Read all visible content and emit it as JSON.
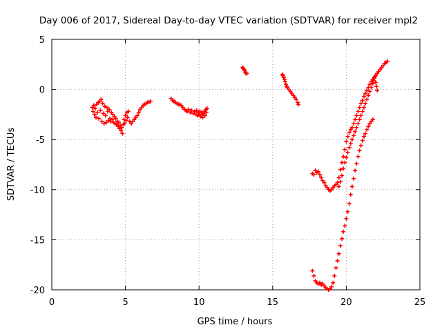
{
  "chart_data": {
    "type": "scatter",
    "title": "Day 006 of 2017, Sidereal Day-to-day VTEC variation (SDTVAR) for receiver mpl2",
    "xlabel": "GPS time / hours",
    "ylabel": "SDTVAR / TECUs",
    "xlim": [
      0,
      25
    ],
    "ylim": [
      -20,
      5
    ],
    "xticks": [
      0,
      5,
      10,
      15,
      20,
      25
    ],
    "yticks": [
      -20,
      -15,
      -10,
      -5,
      0,
      5
    ],
    "grid": true,
    "marker": "plus",
    "color": "#ff0000",
    "series": [
      {
        "points": [
          [
            2.75,
            -1.8
          ],
          [
            2.8,
            -2.2
          ],
          [
            2.85,
            -1.6
          ],
          [
            2.9,
            -2.5
          ],
          [
            2.95,
            -1.9
          ],
          [
            3.0,
            -2.8
          ],
          [
            3.05,
            -1.5
          ],
          [
            3.1,
            -2.3
          ],
          [
            3.15,
            -1.3
          ],
          [
            3.2,
            -2.9
          ],
          [
            3.25,
            -1.2
          ],
          [
            3.3,
            -2.1
          ],
          [
            3.35,
            -1.0
          ],
          [
            3.4,
            -3.2
          ],
          [
            3.45,
            -1.4
          ],
          [
            3.5,
            -2.4
          ],
          [
            3.55,
            -3.4
          ],
          [
            3.6,
            -1.7
          ],
          [
            3.65,
            -2.6
          ],
          [
            3.7,
            -3.3
          ],
          [
            3.75,
            -1.8
          ],
          [
            3.8,
            -2.2
          ],
          [
            3.85,
            -3.1
          ],
          [
            3.9,
            -2.0
          ],
          [
            3.95,
            -2.9
          ],
          [
            4.0,
            -3.2
          ],
          [
            4.05,
            -2.3
          ],
          [
            4.1,
            -3.0
          ],
          [
            4.15,
            -2.5
          ],
          [
            4.2,
            -3.3
          ],
          [
            4.25,
            -2.7
          ],
          [
            4.3,
            -3.4
          ],
          [
            4.35,
            -2.9
          ],
          [
            4.4,
            -3.5
          ],
          [
            4.45,
            -3.2
          ],
          [
            4.5,
            -3.7
          ],
          [
            4.55,
            -3.3
          ],
          [
            4.6,
            -3.9
          ],
          [
            4.65,
            -3.6
          ],
          [
            4.7,
            -4.1
          ],
          [
            4.75,
            -3.8
          ],
          [
            4.8,
            -4.4
          ],
          [
            4.85,
            -3.5
          ],
          [
            4.9,
            -3.0
          ],
          [
            4.95,
            -3.4
          ],
          [
            5.0,
            -2.6
          ],
          [
            5.05,
            -3.1
          ],
          [
            5.1,
            -2.3
          ],
          [
            5.15,
            -2.8
          ],
          [
            5.2,
            -2.2
          ],
          [
            5.3,
            -3.2
          ],
          [
            5.4,
            -3.4
          ],
          [
            5.5,
            -3.2
          ],
          [
            5.6,
            -3.0
          ],
          [
            5.7,
            -2.8
          ],
          [
            5.8,
            -2.6
          ],
          [
            5.9,
            -2.3
          ],
          [
            6.0,
            -2.0
          ],
          [
            6.1,
            -1.8
          ],
          [
            6.2,
            -1.6
          ],
          [
            6.3,
            -1.5
          ],
          [
            6.4,
            -1.4
          ],
          [
            6.5,
            -1.3
          ],
          [
            6.6,
            -1.25
          ],
          [
            6.7,
            -1.2
          ]
        ]
      },
      {
        "points": [
          [
            8.1,
            -0.9
          ],
          [
            8.2,
            -1.1
          ],
          [
            8.3,
            -1.2
          ],
          [
            8.4,
            -1.3
          ],
          [
            8.5,
            -1.4
          ],
          [
            8.6,
            -1.5
          ],
          [
            8.7,
            -1.5
          ],
          [
            8.8,
            -1.6
          ],
          [
            8.9,
            -1.8
          ],
          [
            9.0,
            -2.0
          ],
          [
            9.1,
            -2.1
          ],
          [
            9.2,
            -2.2
          ],
          [
            9.3,
            -2.0
          ],
          [
            9.4,
            -2.3
          ],
          [
            9.5,
            -2.1
          ],
          [
            9.6,
            -2.4
          ],
          [
            9.7,
            -2.2
          ],
          [
            9.8,
            -2.5
          ],
          [
            9.85,
            -2.1
          ],
          [
            9.9,
            -2.6
          ],
          [
            9.95,
            -2.3
          ],
          [
            10.0,
            -2.5
          ],
          [
            10.05,
            -2.2
          ],
          [
            10.1,
            -2.7
          ],
          [
            10.15,
            -2.3
          ],
          [
            10.2,
            -2.5
          ],
          [
            10.25,
            -2.8
          ],
          [
            10.3,
            -2.4
          ],
          [
            10.35,
            -2.2
          ],
          [
            10.4,
            -2.6
          ],
          [
            10.45,
            -2.0
          ],
          [
            10.5,
            -2.3
          ],
          [
            10.55,
            -1.9
          ]
        ]
      },
      {
        "points": [
          [
            12.95,
            2.2
          ],
          [
            13.0,
            2.1
          ],
          [
            13.05,
            2.0
          ],
          [
            13.1,
            1.9
          ],
          [
            13.15,
            1.7
          ],
          [
            13.2,
            1.6
          ],
          [
            13.25,
            1.6
          ]
        ]
      },
      {
        "points": [
          [
            15.65,
            1.5
          ],
          [
            15.7,
            1.4
          ],
          [
            15.75,
            1.2
          ],
          [
            15.8,
            1.0
          ],
          [
            15.85,
            0.8
          ],
          [
            15.9,
            0.5
          ],
          [
            15.95,
            0.3
          ],
          [
            16.0,
            0.2
          ],
          [
            16.1,
            0.0
          ],
          [
            16.2,
            -0.2
          ],
          [
            16.3,
            -0.4
          ],
          [
            16.4,
            -0.6
          ],
          [
            16.5,
            -0.8
          ],
          [
            16.6,
            -1.0
          ],
          [
            16.7,
            -1.3
          ],
          [
            16.75,
            -1.5
          ]
        ]
      },
      {
        "points": [
          [
            17.7,
            -8.4
          ],
          [
            17.8,
            -8.5
          ],
          [
            17.9,
            -8.1
          ],
          [
            18.0,
            -8.3
          ],
          [
            18.1,
            -8.2
          ],
          [
            18.2,
            -8.5
          ],
          [
            18.3,
            -8.8
          ],
          [
            18.4,
            -9.1
          ],
          [
            18.5,
            -9.3
          ],
          [
            18.6,
            -9.6
          ],
          [
            18.7,
            -9.8
          ],
          [
            18.8,
            -10.0
          ],
          [
            18.9,
            -10.1
          ],
          [
            19.0,
            -10.0
          ],
          [
            19.1,
            -9.8
          ],
          [
            19.2,
            -9.6
          ],
          [
            19.3,
            -9.5
          ],
          [
            19.4,
            -9.3
          ],
          [
            19.5,
            -8.8
          ],
          [
            19.6,
            -8.0
          ],
          [
            19.7,
            -7.3
          ],
          [
            19.8,
            -6.7
          ],
          [
            19.9,
            -6.0
          ],
          [
            20.0,
            -5.2
          ],
          [
            20.1,
            -4.7
          ],
          [
            20.2,
            -4.3
          ],
          [
            20.3,
            -4.0
          ],
          [
            20.4,
            -3.8
          ],
          [
            20.5,
            -3.4
          ],
          [
            20.6,
            -3.0
          ],
          [
            20.7,
            -2.6
          ],
          [
            20.8,
            -2.2
          ],
          [
            20.9,
            -1.8
          ],
          [
            21.0,
            -1.4
          ],
          [
            21.1,
            -1.1
          ],
          [
            21.2,
            -0.7
          ],
          [
            21.3,
            -0.4
          ],
          [
            21.4,
            -0.1
          ],
          [
            21.5,
            0.2
          ],
          [
            21.6,
            0.5
          ],
          [
            21.7,
            0.8
          ],
          [
            21.8,
            1.0
          ],
          [
            21.9,
            1.2
          ],
          [
            22.0,
            1.4
          ],
          [
            22.1,
            1.6
          ],
          [
            22.2,
            1.8
          ],
          [
            22.3,
            2.0
          ],
          [
            22.4,
            2.2
          ],
          [
            22.5,
            2.4
          ],
          [
            22.6,
            2.6
          ],
          [
            22.7,
            2.7
          ],
          [
            22.8,
            2.8
          ]
        ]
      },
      {
        "points": [
          [
            19.5,
            -9.7
          ],
          [
            19.6,
            -9.2
          ],
          [
            19.7,
            -8.6
          ],
          [
            19.8,
            -7.9
          ],
          [
            19.9,
            -7.3
          ],
          [
            20.0,
            -6.8
          ],
          [
            20.1,
            -6.3
          ],
          [
            20.2,
            -5.8
          ],
          [
            20.3,
            -5.4
          ],
          [
            20.4,
            -5.0
          ],
          [
            20.5,
            -4.6
          ],
          [
            20.6,
            -4.2
          ],
          [
            20.7,
            -3.8
          ],
          [
            20.8,
            -3.4
          ],
          [
            20.9,
            -3.0
          ],
          [
            21.0,
            -2.6
          ],
          [
            21.1,
            -2.2
          ],
          [
            21.2,
            -1.8
          ],
          [
            21.3,
            -1.4
          ],
          [
            21.4,
            -1.0
          ],
          [
            21.5,
            -0.6
          ],
          [
            21.6,
            -0.2
          ],
          [
            21.7,
            0.2
          ],
          [
            21.8,
            0.6
          ],
          [
            21.85,
            0.9
          ],
          [
            21.9,
            1.1
          ],
          [
            21.95,
            1.3
          ],
          [
            22.0,
            0.7
          ],
          [
            22.05,
            0.3
          ],
          [
            22.1,
            -0.1
          ]
        ]
      },
      {
        "points": [
          [
            17.7,
            -18.1
          ],
          [
            17.8,
            -18.6
          ],
          [
            17.9,
            -19.1
          ],
          [
            18.0,
            -19.3
          ],
          [
            18.1,
            -19.4
          ],
          [
            18.2,
            -19.3
          ],
          [
            18.3,
            -19.5
          ],
          [
            18.4,
            -19.4
          ],
          [
            18.5,
            -19.6
          ],
          [
            18.6,
            -19.8
          ],
          [
            18.7,
            -19.9
          ],
          [
            18.8,
            -20.0
          ],
          [
            18.9,
            -19.9
          ],
          [
            19.0,
            -19.7
          ],
          [
            19.1,
            -19.3
          ],
          [
            19.2,
            -18.6
          ],
          [
            19.3,
            -17.8
          ],
          [
            19.4,
            -17.1
          ],
          [
            19.5,
            -16.4
          ],
          [
            19.6,
            -15.6
          ],
          [
            19.7,
            -14.9
          ],
          [
            19.8,
            -14.2
          ],
          [
            19.9,
            -13.6
          ],
          [
            20.0,
            -12.9
          ],
          [
            20.1,
            -12.2
          ],
          [
            20.2,
            -11.4
          ],
          [
            20.3,
            -10.5
          ],
          [
            20.4,
            -9.7
          ],
          [
            20.5,
            -8.9
          ],
          [
            20.6,
            -8.1
          ],
          [
            20.7,
            -7.4
          ],
          [
            20.8,
            -6.7
          ],
          [
            20.9,
            -6.1
          ],
          [
            21.0,
            -5.6
          ],
          [
            21.1,
            -5.1
          ],
          [
            21.2,
            -4.7
          ],
          [
            21.3,
            -4.4
          ],
          [
            21.4,
            -4.0
          ],
          [
            21.5,
            -3.7
          ],
          [
            21.6,
            -3.4
          ],
          [
            21.7,
            -3.2
          ],
          [
            21.8,
            -3.0
          ]
        ]
      }
    ]
  }
}
